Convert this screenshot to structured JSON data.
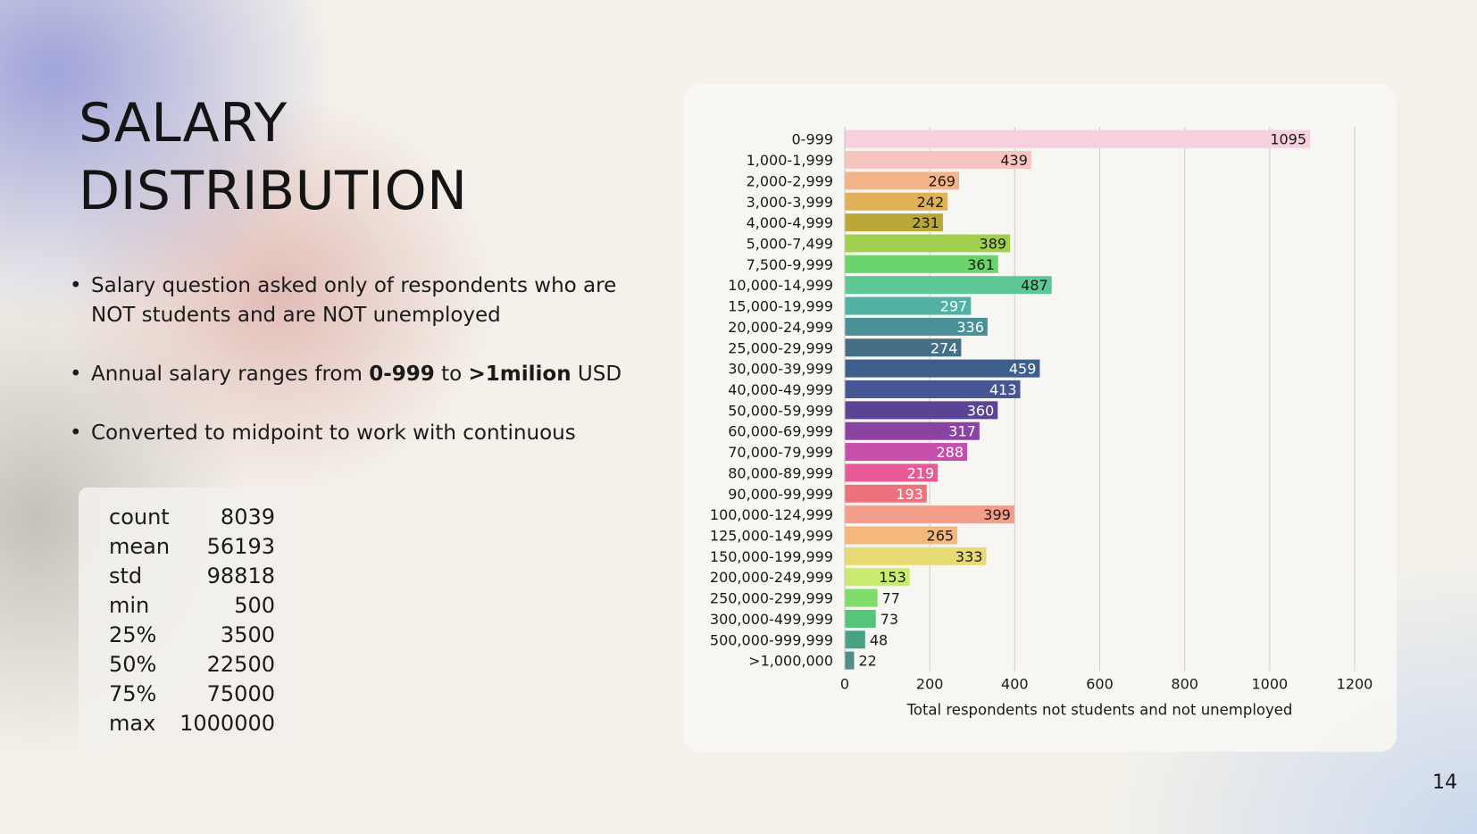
{
  "slide": {
    "title": "SALARY DISTRIBUTION",
    "page_number": "14"
  },
  "bullets": [
    {
      "parts": [
        {
          "text": "Salary question asked only of respondents who are NOT students and are NOT unemployed",
          "bold": false
        }
      ]
    },
    {
      "parts": [
        {
          "text": "Annual salary ranges from ",
          "bold": false
        },
        {
          "text": "0-999",
          "bold": true
        },
        {
          "text": " to ",
          "bold": false
        },
        {
          "text": ">1milion",
          "bold": true
        },
        {
          "text": " USD",
          "bold": false
        }
      ]
    },
    {
      "parts": [
        {
          "text": "Converted to midpoint to work with continuous",
          "bold": false
        }
      ]
    }
  ],
  "stats": [
    {
      "label": "count",
      "value": "8039"
    },
    {
      "label": "mean",
      "value": "56193"
    },
    {
      "label": "std",
      "value": "98818"
    },
    {
      "label": "min",
      "value": "500"
    },
    {
      "label": "25%",
      "value": "3500"
    },
    {
      "label": "50%",
      "value": "22500"
    },
    {
      "label": "75%",
      "value": "75000"
    },
    {
      "label": "max",
      "value": "1000000"
    }
  ],
  "chart_data": {
    "type": "bar",
    "orientation": "horizontal",
    "categories": [
      "0-999",
      "1,000-1,999",
      "2,000-2,999",
      "3,000-3,999",
      "4,000-4,999",
      "5,000-7,499",
      "7,500-9,999",
      "10,000-14,999",
      "15,000-19,999",
      "20,000-24,999",
      "25,000-29,999",
      "30,000-39,999",
      "40,000-49,999",
      "50,000-59,999",
      "60,000-69,999",
      "70,000-79,999",
      "80,000-89,999",
      "90,000-99,999",
      "100,000-124,999",
      "125,000-149,999",
      "150,000-199,999",
      "200,000-249,999",
      "250,000-299,999",
      "300,000-499,999",
      "500,000-999,999",
      ">1,000,000"
    ],
    "values": [
      1095,
      439,
      269,
      242,
      231,
      389,
      361,
      487,
      297,
      336,
      274,
      459,
      413,
      360,
      317,
      288,
      219,
      193,
      399,
      265,
      333,
      153,
      77,
      73,
      48,
      22
    ],
    "colors": [
      "#f7cfdf",
      "#f8c4bf",
      "#f4b48a",
      "#e1b159",
      "#b9a738",
      "#a3cf4f",
      "#6cd46d",
      "#5ec796",
      "#51b2a4",
      "#4a9197",
      "#446f85",
      "#3e5e8b",
      "#465693",
      "#5b4496",
      "#8a43a0",
      "#c54fab",
      "#e85a96",
      "#ee717e",
      "#f29e8a",
      "#f4b87c",
      "#e8da74",
      "#c9ec70",
      "#7edd6a",
      "#55c679",
      "#48a386",
      "#4f8f87"
    ],
    "label_colors": [
      "#1a1a1a",
      "#1a1a1a",
      "#1a1a1a",
      "#1a1a1a",
      "#1a1a1a",
      "#1a1a1a",
      "#1a1a1a",
      "#1a1a1a",
      "#ffffff",
      "#ffffff",
      "#ffffff",
      "#ffffff",
      "#ffffff",
      "#ffffff",
      "#ffffff",
      "#ffffff",
      "#ffffff",
      "#ffffff",
      "#1a1a1a",
      "#1a1a1a",
      "#1a1a1a",
      "#1a1a1a",
      "#1a1a1a",
      "#ffffff",
      "#1a1a1a",
      "#1a1a1a"
    ],
    "xlim": [
      0,
      1200
    ],
    "xticks": [
      0,
      200,
      400,
      600,
      800,
      1000,
      1200
    ],
    "xlabel": "Total respondents not students and not unemployed",
    "ylabel": "",
    "title": "",
    "grid": "vertical",
    "legend": "none"
  }
}
